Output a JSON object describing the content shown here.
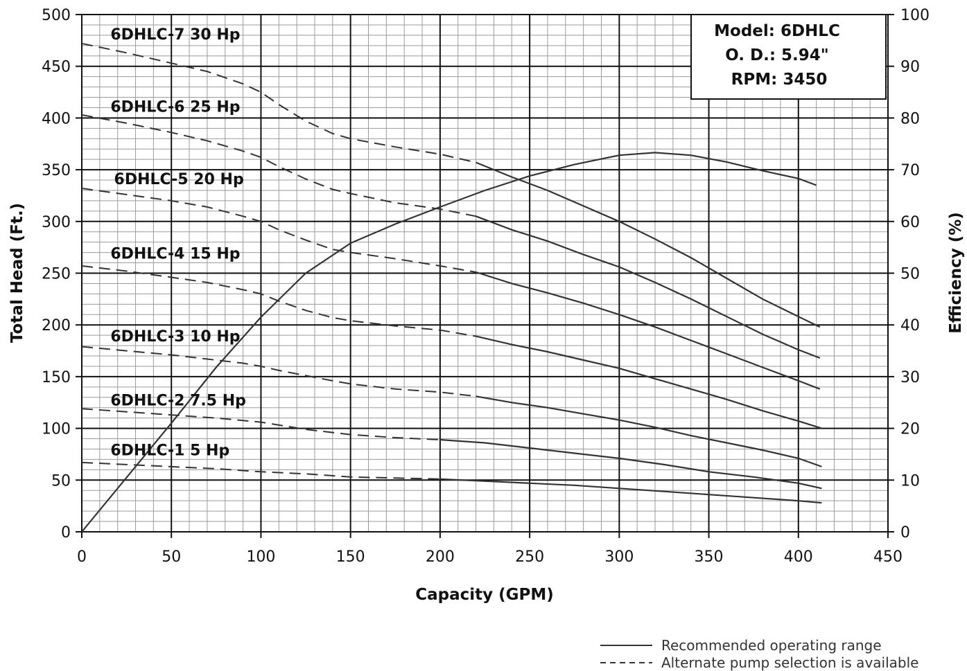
{
  "chart_data": {
    "type": "line",
    "xlabel": "Capacity (GPM)",
    "ylabel": "Total Head (Ft.)",
    "y2label": "Efficiency (%)",
    "xlim": [
      0,
      450
    ],
    "ylim": [
      0,
      500
    ],
    "y2lim": [
      0,
      100
    ],
    "x_ticks": [
      0,
      50,
      100,
      150,
      200,
      250,
      300,
      350,
      400,
      450
    ],
    "y_ticks": [
      0,
      50,
      100,
      150,
      200,
      250,
      300,
      350,
      400,
      450,
      500
    ],
    "y2_ticks": [
      0,
      10,
      20,
      30,
      40,
      50,
      60,
      70,
      80,
      90,
      100
    ],
    "grid": true,
    "info_box": {
      "lines": [
        "Model: 6DHLC",
        "O. D.: 5.94\"",
        "RPM: 3450"
      ],
      "placement": "top-right"
    },
    "legend": {
      "placement": "bottom-right",
      "items": [
        {
          "style": "solid",
          "label": "Recommended operating range"
        },
        {
          "style": "dashed",
          "label": "Alternate pump selection is available"
        }
      ]
    },
    "series": [
      {
        "name": "6DHLC-7 30 Hp",
        "axis": "left",
        "dashed_until": 220,
        "points": [
          [
            0,
            472
          ],
          [
            25,
            463
          ],
          [
            50,
            453
          ],
          [
            70,
            445
          ],
          [
            90,
            433
          ],
          [
            100,
            425
          ],
          [
            110,
            413
          ],
          [
            125,
            397
          ],
          [
            140,
            385
          ],
          [
            150,
            380
          ],
          [
            175,
            372
          ],
          [
            200,
            365
          ],
          [
            220,
            357
          ],
          [
            240,
            343
          ],
          [
            260,
            330
          ],
          [
            280,
            315
          ],
          [
            300,
            300
          ],
          [
            320,
            283
          ],
          [
            340,
            265
          ],
          [
            360,
            245
          ],
          [
            380,
            225
          ],
          [
            400,
            208
          ],
          [
            412,
            198
          ]
        ]
      },
      {
        "name": "6DHLC-6 25 Hp",
        "axis": "left",
        "dashed_until": 220,
        "points": [
          [
            0,
            403
          ],
          [
            25,
            395
          ],
          [
            50,
            386
          ],
          [
            70,
            378
          ],
          [
            90,
            368
          ],
          [
            100,
            362
          ],
          [
            110,
            353
          ],
          [
            125,
            341
          ],
          [
            140,
            331
          ],
          [
            150,
            327
          ],
          [
            175,
            318
          ],
          [
            200,
            312
          ],
          [
            220,
            305
          ],
          [
            240,
            292
          ],
          [
            260,
            281
          ],
          [
            280,
            268
          ],
          [
            300,
            256
          ],
          [
            320,
            241
          ],
          [
            340,
            225
          ],
          [
            360,
            208
          ],
          [
            380,
            191
          ],
          [
            400,
            176
          ],
          [
            412,
            168
          ]
        ]
      },
      {
        "name": "6DHLC-5 20 Hp",
        "axis": "left",
        "dashed_until": 220,
        "points": [
          [
            0,
            332
          ],
          [
            25,
            326
          ],
          [
            50,
            320
          ],
          [
            70,
            314
          ],
          [
            90,
            305
          ],
          [
            100,
            300
          ],
          [
            110,
            292
          ],
          [
            125,
            282
          ],
          [
            140,
            273
          ],
          [
            150,
            270
          ],
          [
            175,
            264
          ],
          [
            200,
            257
          ],
          [
            220,
            251
          ],
          [
            240,
            240
          ],
          [
            260,
            231
          ],
          [
            280,
            221
          ],
          [
            300,
            210
          ],
          [
            320,
            198
          ],
          [
            340,
            185
          ],
          [
            360,
            172
          ],
          [
            380,
            159
          ],
          [
            400,
            146
          ],
          [
            412,
            138
          ]
        ]
      },
      {
        "name": "6DHLC-4 15 Hp",
        "axis": "left",
        "dashed_until": 220,
        "points": [
          [
            0,
            257
          ],
          [
            25,
            252
          ],
          [
            50,
            246
          ],
          [
            70,
            241
          ],
          [
            90,
            234
          ],
          [
            100,
            230
          ],
          [
            110,
            223
          ],
          [
            125,
            214
          ],
          [
            140,
            207
          ],
          [
            150,
            204
          ],
          [
            175,
            199
          ],
          [
            200,
            195
          ],
          [
            220,
            189
          ],
          [
            240,
            181
          ],
          [
            260,
            174
          ],
          [
            280,
            166
          ],
          [
            300,
            158
          ],
          [
            320,
            148
          ],
          [
            340,
            138
          ],
          [
            360,
            128
          ],
          [
            380,
            117
          ],
          [
            400,
            107
          ],
          [
            413,
            100
          ]
        ]
      },
      {
        "name": "6DHLC-3 10 Hp",
        "axis": "left",
        "dashed_until": 220,
        "points": [
          [
            0,
            179
          ],
          [
            25,
            175
          ],
          [
            50,
            171
          ],
          [
            70,
            167
          ],
          [
            90,
            163
          ],
          [
            100,
            160
          ],
          [
            110,
            156
          ],
          [
            125,
            151
          ],
          [
            140,
            146
          ],
          [
            150,
            143
          ],
          [
            175,
            138
          ],
          [
            200,
            135
          ],
          [
            220,
            131
          ],
          [
            240,
            125
          ],
          [
            260,
            120
          ],
          [
            280,
            114
          ],
          [
            300,
            108
          ],
          [
            320,
            101
          ],
          [
            340,
            93
          ],
          [
            360,
            86
          ],
          [
            380,
            79
          ],
          [
            400,
            71
          ],
          [
            413,
            63
          ]
        ]
      },
      {
        "name": "6DHLC-2 7.5 Hp",
        "axis": "left",
        "dashed_until": 200,
        "points": [
          [
            0,
            119
          ],
          [
            25,
            116
          ],
          [
            50,
            113
          ],
          [
            75,
            110
          ],
          [
            100,
            106
          ],
          [
            125,
            99
          ],
          [
            150,
            94
          ],
          [
            175,
            91
          ],
          [
            200,
            89
          ],
          [
            225,
            86
          ],
          [
            250,
            81
          ],
          [
            275,
            76
          ],
          [
            300,
            71
          ],
          [
            325,
            65
          ],
          [
            350,
            58
          ],
          [
            375,
            53
          ],
          [
            400,
            47
          ],
          [
            413,
            42
          ]
        ]
      },
      {
        "name": "6DHLC-1 5 Hp",
        "axis": "left",
        "dashed_until": 200,
        "points": [
          [
            0,
            67
          ],
          [
            25,
            65
          ],
          [
            50,
            63
          ],
          [
            75,
            61
          ],
          [
            100,
            58
          ],
          [
            125,
            56
          ],
          [
            150,
            53
          ],
          [
            175,
            52
          ],
          [
            200,
            51
          ],
          [
            225,
            49
          ],
          [
            250,
            47
          ],
          [
            275,
            45
          ],
          [
            300,
            42
          ],
          [
            325,
            39
          ],
          [
            350,
            36
          ],
          [
            375,
            33
          ],
          [
            400,
            30
          ],
          [
            413,
            28
          ]
        ]
      },
      {
        "name": "",
        "axis": "right",
        "dashed_until": 0,
        "points": [
          [
            0,
            0
          ],
          [
            25,
            10.5
          ],
          [
            50,
            21
          ],
          [
            75,
            31.8
          ],
          [
            100,
            41.5
          ],
          [
            125,
            50
          ],
          [
            150,
            55.8
          ],
          [
            175,
            59.5
          ],
          [
            200,
            62.8
          ],
          [
            225,
            66
          ],
          [
            250,
            68.8
          ],
          [
            275,
            71
          ],
          [
            300,
            72.8
          ],
          [
            320,
            73.3
          ],
          [
            340,
            72.8
          ],
          [
            360,
            71.5
          ],
          [
            380,
            69.8
          ],
          [
            400,
            68.3
          ],
          [
            410,
            67
          ]
        ]
      }
    ],
    "curve_labels": [
      {
        "text": "6DHLC-7 30 Hp",
        "x": 16,
        "y": 476
      },
      {
        "text": "6DHLC-6 25 Hp",
        "x": 16,
        "y": 406
      },
      {
        "text": "6DHLC-5 20 Hp",
        "x": 18,
        "y": 336
      },
      {
        "text": "6DHLC-4 15 Hp",
        "x": 16,
        "y": 264
      },
      {
        "text": "6DHLC-3 10 Hp",
        "x": 16,
        "y": 184
      },
      {
        "text": "6DHLC-2 7.5 Hp",
        "x": 16,
        "y": 122
      },
      {
        "text": "6DHLC-1 5 Hp",
        "x": 16,
        "y": 74
      }
    ]
  }
}
